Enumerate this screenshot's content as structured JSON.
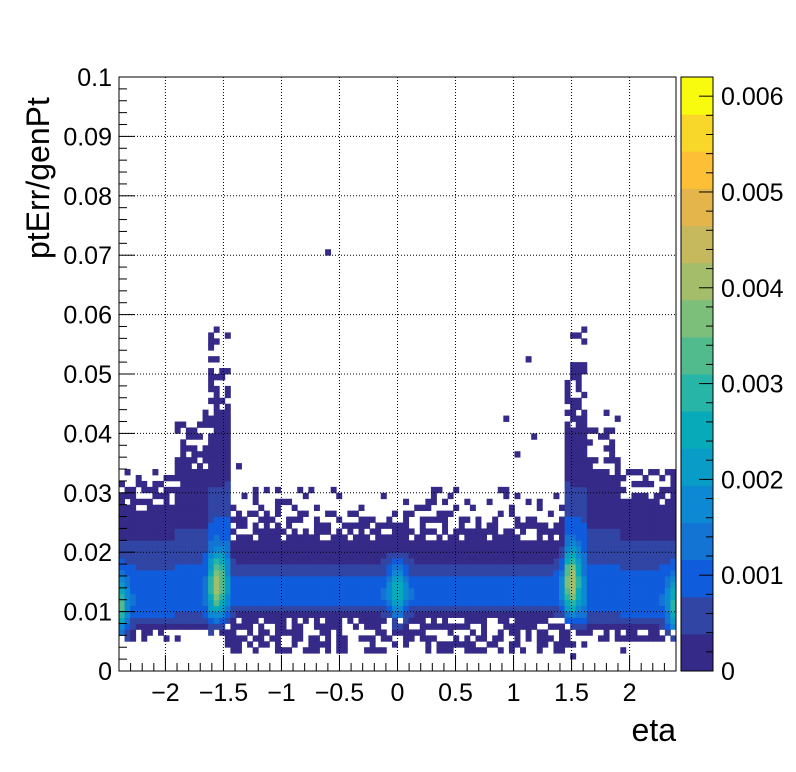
{
  "chart_data": {
    "type": "heatmap",
    "title": "",
    "xlabel": "eta",
    "ylabel": "ptErr/genPt",
    "xlim": [
      -2.4,
      2.4
    ],
    "ylim": [
      0,
      0.1
    ],
    "x_ticks": [
      -2,
      -1.5,
      -1,
      -0.5,
      0,
      0.5,
      1,
      1.5,
      2
    ],
    "x_tick_labels": [
      "−2",
      "−1.5",
      "−1",
      "−0.5",
      "0",
      "0.5",
      "1",
      "1.5",
      "2"
    ],
    "y_ticks": [
      0,
      0.01,
      0.02,
      0.03,
      0.04,
      0.05,
      0.06,
      0.07,
      0.08,
      0.09,
      0.1
    ],
    "y_tick_labels": [
      "0",
      "0.01",
      "0.02",
      "0.03",
      "0.04",
      "0.05",
      "0.06",
      "0.07",
      "0.08",
      "0.09",
      "0.1"
    ],
    "grid": true,
    "colorbar": {
      "range": [
        0,
        0.0062
      ],
      "ticks": [
        0,
        0.001,
        0.002,
        0.003,
        0.004,
        0.005,
        0.006
      ],
      "tick_labels": [
        "0",
        "0.001",
        "0.002",
        "0.003",
        "0.004",
        "0.005",
        "0.006"
      ],
      "palette": [
        "#352a87",
        "#3145a4",
        "#0f5cdd",
        "#1474d4",
        "#0d89d4",
        "#099cc6",
        "#07aab9",
        "#26b5a6",
        "#52bb8e",
        "#7cbf7b",
        "#a3bd6a",
        "#c6b95d",
        "#e3b54b",
        "#fcbf35",
        "#f9d72a",
        "#f9fb0e"
      ]
    },
    "bin_size": {
      "eta": 0.048,
      "ptErr_over_genPt": 0.001
    },
    "distribution": {
      "core_mean_by_region": [
        {
          "eta_range": [
            -2.4,
            -1.6
          ],
          "mean": 0.0115
        },
        {
          "eta_range": [
            -1.5,
            1.5
          ],
          "mean": 0.0127
        },
        {
          "eta_range": [
            1.6,
            2.4
          ],
          "mean": 0.0115
        }
      ],
      "peaks": [
        {
          "eta": -2.4,
          "ptErr_over_genPt": 0.0105,
          "value": 0.0035
        },
        {
          "eta": -1.55,
          "ptErr_over_genPt": 0.0148,
          "value": 0.004
        },
        {
          "eta": 0.0,
          "ptErr_over_genPt": 0.0135,
          "value": 0.0025
        },
        {
          "eta": 1.5,
          "ptErr_over_genPt": 0.0152,
          "value": 0.0042
        },
        {
          "eta": 2.4,
          "ptErr_over_genPt": 0.0105,
          "value": 0.003
        }
      ],
      "isolated_points": [
        {
          "eta": -0.6,
          "ptErr_over_genPt": 0.0705
        },
        {
          "eta": 1.15,
          "ptErr_over_genPt": 0.0525
        },
        {
          "eta": 0.95,
          "ptErr_over_genPt": 0.0425
        },
        {
          "eta": 1.2,
          "ptErr_over_genPt": 0.0395
        },
        {
          "eta": 1.05,
          "ptErr_over_genPt": 0.0365
        },
        {
          "eta": -1.35,
          "ptErr_over_genPt": 0.0345
        },
        {
          "eta": -1.1,
          "ptErr_over_genPt": 0.0235
        },
        {
          "eta": 1.95,
          "ptErr_over_genPt": 0.0035
        },
        {
          "eta": 1.5,
          "ptErr_over_genPt": 0.0025
        }
      ]
    }
  }
}
